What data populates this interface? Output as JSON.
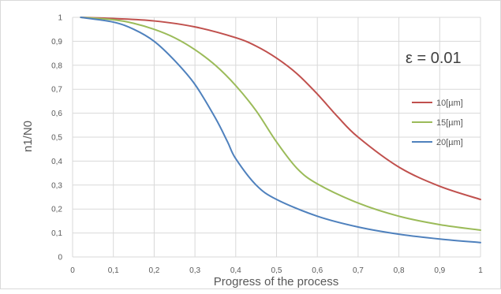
{
  "chart_data": {
    "type": "line",
    "xlabel": "Progress of the process",
    "ylabel": "n1/N0",
    "annotation": "ε = 0.01",
    "xlim": [
      0,
      1
    ],
    "ylim": [
      0,
      1
    ],
    "grid": true,
    "legend_position": "right",
    "x_ticks": [
      "0",
      "0,1",
      "0,2",
      "0,3",
      "0,4",
      "0,5",
      "0,6",
      "0,7",
      "0,8",
      "0,9",
      "1"
    ],
    "y_ticks": [
      "0",
      "0,1",
      "0,2",
      "0,3",
      "0,4",
      "0,5",
      "0,6",
      "0,7",
      "0,8",
      "0,9",
      "1"
    ],
    "series": [
      {
        "name": "10[µm]",
        "color": "#c0504d",
        "x": [
          0.02,
          0.1,
          0.2,
          0.3,
          0.4,
          0.45,
          0.5,
          0.55,
          0.6,
          0.65,
          0.7,
          0.8,
          0.9,
          1.0
        ],
        "y": [
          1.0,
          0.995,
          0.985,
          0.96,
          0.915,
          0.88,
          0.83,
          0.765,
          0.68,
          0.585,
          0.5,
          0.375,
          0.295,
          0.24
        ]
      },
      {
        "name": "15[µm]",
        "color": "#9bbb59",
        "x": [
          0.02,
          0.1,
          0.15,
          0.2,
          0.25,
          0.3,
          0.35,
          0.4,
          0.45,
          0.5,
          0.55,
          0.6,
          0.7,
          0.8,
          0.9,
          1.0
        ],
        "y": [
          1.0,
          0.99,
          0.975,
          0.95,
          0.915,
          0.865,
          0.8,
          0.715,
          0.61,
          0.48,
          0.37,
          0.305,
          0.225,
          0.17,
          0.135,
          0.112
        ]
      },
      {
        "name": "20[µm]",
        "color": "#4f81bd",
        "x": [
          0.02,
          0.1,
          0.15,
          0.2,
          0.25,
          0.3,
          0.35,
          0.38,
          0.4,
          0.45,
          0.5,
          0.6,
          0.7,
          0.8,
          0.9,
          1.0
        ],
        "y": [
          1.0,
          0.98,
          0.95,
          0.9,
          0.82,
          0.72,
          0.58,
          0.48,
          0.41,
          0.3,
          0.24,
          0.17,
          0.125,
          0.095,
          0.075,
          0.06
        ]
      }
    ]
  }
}
